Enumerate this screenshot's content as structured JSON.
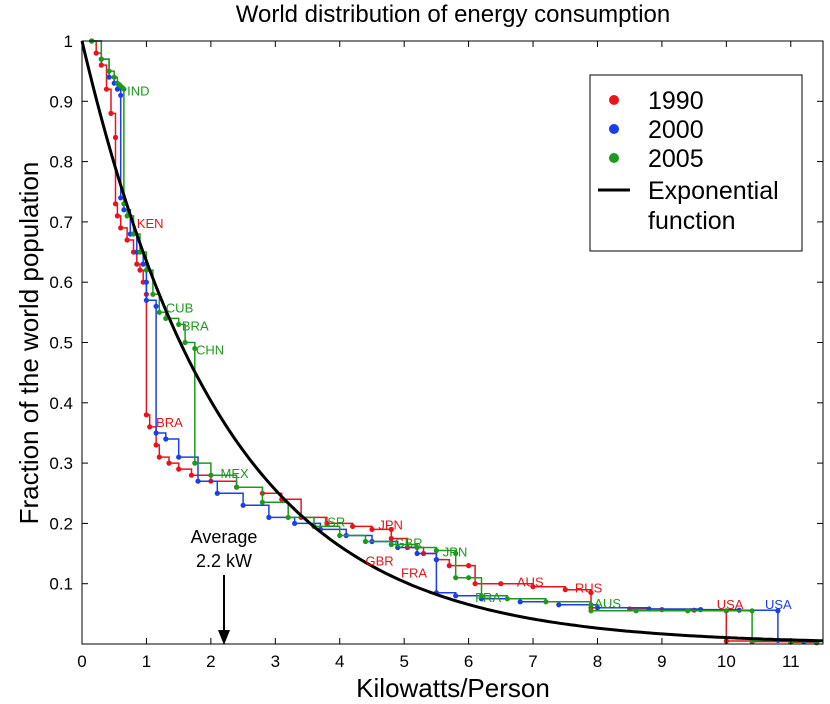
{
  "chart_data": {
    "type": "line",
    "title": "World distribution of energy consumption",
    "xlabel": "Kilowatts/Person",
    "ylabel": "Fraction of the world population",
    "xlim": [
      0,
      11.5
    ],
    "ylim": [
      0,
      1
    ],
    "xticks": [
      0,
      1,
      2,
      3,
      4,
      5,
      6,
      7,
      8,
      9,
      10,
      11
    ],
    "yticks": [
      0.1,
      0.2,
      0.3,
      0.4,
      0.5,
      0.6,
      0.7,
      0.8,
      0.9,
      1
    ],
    "ytick_labels": [
      "0.1",
      "0.2",
      "0.3",
      "0.4",
      "0.5",
      "0.6",
      "0.7",
      "0.8",
      "0.9",
      "1"
    ],
    "legend_position": "top-right",
    "series": [
      {
        "name": "1990",
        "color": "#e8141a",
        "kind": "step-dots",
        "x": [
          0.15,
          0.22,
          0.3,
          0.38,
          0.45,
          0.52,
          0.52,
          0.55,
          0.6,
          0.7,
          0.8,
          0.85,
          0.9,
          0.95,
          1.0,
          1.0,
          1.05,
          1.15,
          1.2,
          1.35,
          1.5,
          1.7,
          2.0,
          2.4,
          2.8,
          3.1,
          3.4,
          3.8,
          4.2,
          4.5,
          4.8,
          4.8,
          5.05,
          5.3,
          5.5,
          5.7,
          6.0,
          6.1,
          6.5,
          7.0,
          7.5,
          7.9,
          7.9,
          8.5,
          9.0,
          9.5,
          10.0,
          10.0,
          10.4,
          11.0,
          11.4
        ],
        "y": [
          1.0,
          0.98,
          0.96,
          0.92,
          0.88,
          0.84,
          0.73,
          0.71,
          0.69,
          0.67,
          0.65,
          0.63,
          0.62,
          0.6,
          0.58,
          0.38,
          0.36,
          0.33,
          0.31,
          0.3,
          0.29,
          0.28,
          0.27,
          0.26,
          0.25,
          0.24,
          0.21,
          0.2,
          0.195,
          0.19,
          0.19,
          0.175,
          0.16,
          0.15,
          0.14,
          0.13,
          0.13,
          0.1,
          0.1,
          0.095,
          0.09,
          0.085,
          0.06,
          0.058,
          0.057,
          0.056,
          0.055,
          0.005,
          0.004,
          0.003,
          0.002
        ]
      },
      {
        "name": "2000",
        "color": "#1c3ee8",
        "kind": "step-dots",
        "x": [
          0.15,
          0.3,
          0.42,
          0.5,
          0.55,
          0.6,
          0.6,
          0.65,
          0.75,
          0.85,
          0.95,
          1.0,
          1.0,
          1.15,
          1.15,
          1.3,
          1.5,
          1.8,
          2.1,
          2.5,
          2.9,
          3.3,
          3.7,
          4.1,
          4.5,
          4.9,
          5.2,
          5.5,
          5.5,
          5.8,
          6.2,
          6.8,
          7.4,
          8.0,
          8.8,
          9.6,
          10.2,
          10.8,
          10.8,
          11.2,
          11.4
        ],
        "y": [
          1.0,
          0.97,
          0.94,
          0.93,
          0.92,
          0.91,
          0.74,
          0.72,
          0.68,
          0.65,
          0.63,
          0.6,
          0.57,
          0.56,
          0.35,
          0.34,
          0.31,
          0.27,
          0.25,
          0.23,
          0.21,
          0.2,
          0.19,
          0.18,
          0.17,
          0.16,
          0.15,
          0.14,
          0.085,
          0.08,
          0.075,
          0.07,
          0.065,
          0.06,
          0.058,
          0.057,
          0.056,
          0.055,
          0.006,
          0.004,
          0.003
        ]
      },
      {
        "name": "2005",
        "color": "#1d9a1d",
        "kind": "step-dots",
        "x": [
          0.15,
          0.3,
          0.42,
          0.5,
          0.55,
          0.6,
          0.65,
          0.65,
          0.7,
          0.8,
          0.9,
          1.0,
          1.1,
          1.2,
          1.3,
          1.5,
          1.6,
          1.75,
          1.75,
          2.0,
          2.4,
          2.8,
          3.2,
          3.6,
          4.0,
          4.4,
          4.8,
          5.2,
          5.5,
          5.8,
          5.8,
          6.0,
          6.2,
          6.6,
          7.2,
          7.9,
          7.9,
          8.6,
          9.4,
          10.0,
          10.4,
          10.4,
          11.0,
          11.4
        ],
        "y": [
          1.0,
          0.97,
          0.95,
          0.94,
          0.93,
          0.925,
          0.92,
          0.73,
          0.71,
          0.68,
          0.65,
          0.62,
          0.58,
          0.55,
          0.54,
          0.53,
          0.5,
          0.49,
          0.3,
          0.28,
          0.26,
          0.235,
          0.21,
          0.195,
          0.18,
          0.17,
          0.165,
          0.16,
          0.155,
          0.15,
          0.11,
          0.11,
          0.08,
          0.075,
          0.07,
          0.065,
          0.055,
          0.055,
          0.055,
          0.055,
          0.055,
          0.006,
          0.004,
          0.003
        ]
      },
      {
        "name": "Exponential function",
        "color": "#000000",
        "kind": "exp",
        "rate": 0.4545
      }
    ],
    "annotations": [
      {
        "text": "IND",
        "x": 0.7,
        "y": 0.91,
        "series": "2005"
      },
      {
        "text": "KEN",
        "x": 0.85,
        "y": 0.69,
        "series": "1990"
      },
      {
        "text": "CUB",
        "x": 1.3,
        "y": 0.55,
        "series": "2005"
      },
      {
        "text": "BRA",
        "x": 1.55,
        "y": 0.52,
        "series": "2005"
      },
      {
        "text": "CHN",
        "x": 1.77,
        "y": 0.48,
        "series": "2005"
      },
      {
        "text": "BRA",
        "x": 1.15,
        "y": 0.36,
        "series": "1990"
      },
      {
        "text": "MEX",
        "x": 2.15,
        "y": 0.275,
        "series": "2005"
      },
      {
        "text": "ISR",
        "x": 3.75,
        "y": 0.195,
        "series": "2005"
      },
      {
        "text": "JPN",
        "x": 4.6,
        "y": 0.19,
        "series": "1990"
      },
      {
        "text": "GBR",
        "x": 4.85,
        "y": 0.16,
        "series": "2005"
      },
      {
        "text": "GBR",
        "x": 4.4,
        "y": 0.13,
        "series": "1990"
      },
      {
        "text": "JPN",
        "x": 5.6,
        "y": 0.145,
        "series": "2005"
      },
      {
        "text": "FRA",
        "x": 4.95,
        "y": 0.11,
        "series": "1990"
      },
      {
        "text": "FRA",
        "x": 6.1,
        "y": 0.07,
        "series": "2005"
      },
      {
        "text": "AUS",
        "x": 6.75,
        "y": 0.095,
        "series": "1990"
      },
      {
        "text": "RUS",
        "x": 7.65,
        "y": 0.085,
        "series": "1990"
      },
      {
        "text": "AUS",
        "x": 7.95,
        "y": 0.06,
        "series": "2005"
      },
      {
        "text": "USA",
        "x": 9.85,
        "y": 0.058,
        "series": "1990"
      },
      {
        "text": "USA",
        "x": 10.6,
        "y": 0.058,
        "series": "2000"
      }
    ],
    "average_marker": {
      "line1": "Average",
      "line2": "2.2 kW",
      "x": 2.2
    }
  }
}
